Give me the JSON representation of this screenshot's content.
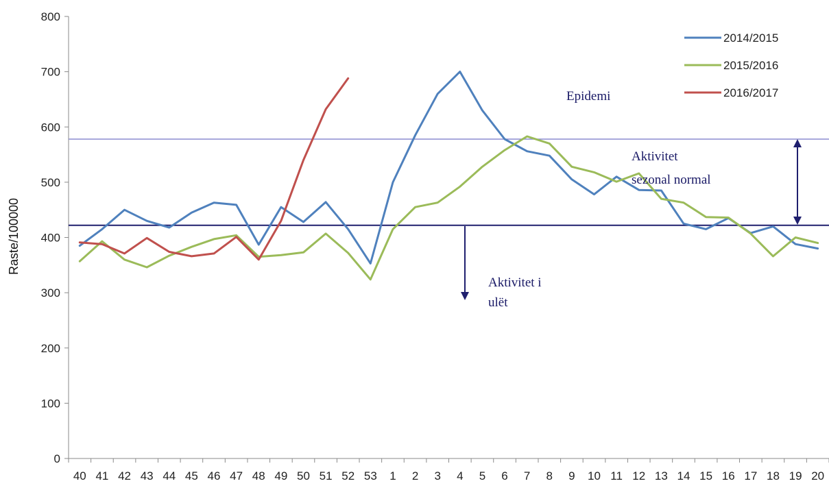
{
  "chart_data": {
    "type": "line",
    "ylabel": "Raste/100000",
    "xlabel": "",
    "ylim": [
      0,
      800
    ],
    "yticks": [
      0,
      100,
      200,
      300,
      400,
      500,
      600,
      700,
      800
    ],
    "categories": [
      "40",
      "41",
      "42",
      "43",
      "44",
      "45",
      "46",
      "47",
      "48",
      "49",
      "50",
      "51",
      "52",
      "53",
      "1",
      "2",
      "3",
      "4",
      "5",
      "6",
      "7",
      "8",
      "9",
      "10",
      "11",
      "12",
      "13",
      "14",
      "15",
      "16",
      "17",
      "18",
      "19",
      "20"
    ],
    "series": [
      {
        "name": "2014/2015",
        "color": "#4f81bd",
        "values": [
          385,
          415,
          450,
          430,
          418,
          445,
          463,
          459,
          387,
          455,
          428,
          464,
          415,
          353,
          500,
          585,
          660,
          700,
          630,
          578,
          556,
          548,
          505,
          478,
          510,
          486,
          485,
          425,
          415,
          435,
          408,
          420,
          388,
          380
        ]
      },
      {
        "name": "2015/2016",
        "color": "#9bbb59",
        "values": [
          357,
          393,
          360,
          346,
          367,
          383,
          397,
          404,
          365,
          368,
          373,
          407,
          372,
          324,
          415,
          455,
          463,
          492,
          528,
          558,
          583,
          570,
          528,
          518,
          501,
          516,
          470,
          463,
          437,
          436,
          407,
          366,
          400,
          390
        ]
      },
      {
        "name": "2016/2017",
        "color": "#c0504d",
        "values": [
          391,
          388,
          371,
          399,
          374,
          366,
          371,
          401,
          360,
          430,
          540,
          632,
          688,
          null,
          null,
          null,
          null,
          null,
          null,
          null,
          null,
          null,
          null,
          null,
          null,
          null,
          null,
          null,
          null,
          null,
          null,
          null,
          null,
          null
        ]
      }
    ],
    "thresholds": [
      {
        "value": 578,
        "color": "#8c8cd0"
      },
      {
        "value": 422,
        "color": "#1f1f6e"
      }
    ],
    "annotations": {
      "epidemic": "Epidemi",
      "normal_line1": "Aktivitet",
      "normal_line2": "sezonal normal",
      "low_line1": "Aktivitet i",
      "low_line2": "ulët"
    },
    "legend_position": "top-right",
    "grid": false
  }
}
